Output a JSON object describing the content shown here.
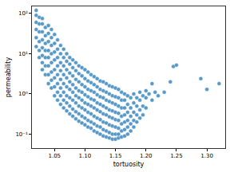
{
  "chart_data": {
    "type": "scatter",
    "x_label": "tortuosity",
    "y_label": "permeability",
    "color": "#1f77b4",
    "marker": "circle",
    "log": "y",
    "grid": false,
    "xlim": [
      1.013,
      1.33
    ],
    "ylim": [
      0.045,
      150
    ],
    "xticks": [
      1.05,
      {
        "value": 1.1,
        "label": "1.10"
      },
      1.15,
      {
        "value": 1.2,
        "label": "1.20"
      },
      1.25,
      {
        "value": 1.3,
        "label": "1.30"
      }
    ],
    "yticks": [
      {
        "value": 0.1,
        "label": "10⁻¹"
      },
      {
        "value": 1,
        "label": "10⁰"
      },
      {
        "value": 10,
        "label": "10¹"
      },
      {
        "value": 100,
        "label": "10²"
      }
    ],
    "x": [
      1.02,
      1.02,
      1.02,
      1.02,
      1.02,
      1.02,
      1.025,
      1.025,
      1.025,
      1.025,
      1.025,
      1.025,
      1.03,
      1.03,
      1.03,
      1.03,
      1.03,
      1.03,
      1.03,
      1.03,
      1.035,
      1.035,
      1.035,
      1.035,
      1.035,
      1.035,
      1.035,
      1.04,
      1.04,
      1.04,
      1.04,
      1.04,
      1.04,
      1.04,
      1.04,
      1.045,
      1.045,
      1.045,
      1.045,
      1.045,
      1.045,
      1.045,
      1.045,
      1.05,
      1.05,
      1.05,
      1.05,
      1.05,
      1.05,
      1.05,
      1.05,
      1.055,
      1.055,
      1.055,
      1.055,
      1.055,
      1.055,
      1.055,
      1.055,
      1.06,
      1.06,
      1.06,
      1.06,
      1.06,
      1.06,
      1.06,
      1.06,
      1.065,
      1.065,
      1.065,
      1.065,
      1.065,
      1.065,
      1.065,
      1.065,
      1.07,
      1.07,
      1.07,
      1.07,
      1.07,
      1.07,
      1.07,
      1.07,
      1.075,
      1.075,
      1.075,
      1.075,
      1.075,
      1.075,
      1.075,
      1.075,
      1.08,
      1.08,
      1.08,
      1.08,
      1.08,
      1.08,
      1.08,
      1.08,
      1.085,
      1.085,
      1.085,
      1.085,
      1.085,
      1.085,
      1.085,
      1.085,
      1.09,
      1.09,
      1.09,
      1.09,
      1.09,
      1.09,
      1.09,
      1.09,
      1.095,
      1.095,
      1.095,
      1.095,
      1.095,
      1.095,
      1.095,
      1.095,
      1.1,
      1.1,
      1.1,
      1.1,
      1.1,
      1.1,
      1.1,
      1.1,
      1.105,
      1.105,
      1.105,
      1.105,
      1.105,
      1.105,
      1.105,
      1.105,
      1.11,
      1.11,
      1.11,
      1.11,
      1.11,
      1.11,
      1.11,
      1.11,
      1.115,
      1.115,
      1.115,
      1.115,
      1.115,
      1.115,
      1.115,
      1.115,
      1.12,
      1.12,
      1.12,
      1.12,
      1.12,
      1.12,
      1.12,
      1.12,
      1.125,
      1.125,
      1.125,
      1.125,
      1.125,
      1.125,
      1.125,
      1.125,
      1.13,
      1.13,
      1.13,
      1.13,
      1.13,
      1.13,
      1.13,
      1.13,
      1.135,
      1.135,
      1.135,
      1.135,
      1.135,
      1.135,
      1.135,
      1.135,
      1.14,
      1.14,
      1.14,
      1.14,
      1.14,
      1.14,
      1.14,
      1.14,
      1.145,
      1.145,
      1.145,
      1.145,
      1.145,
      1.145,
      1.145,
      1.145,
      1.15,
      1.15,
      1.15,
      1.15,
      1.15,
      1.15,
      1.15,
      1.15,
      1.155,
      1.155,
      1.155,
      1.155,
      1.155,
      1.155,
      1.155,
      1.155,
      1.16,
      1.16,
      1.16,
      1.16,
      1.16,
      1.16,
      1.16,
      1.165,
      1.165,
      1.165,
      1.165,
      1.165,
      1.165,
      1.165,
      1.17,
      1.17,
      1.17,
      1.17,
      1.17,
      1.17,
      1.175,
      1.175,
      1.175,
      1.175,
      1.175,
      1.18,
      1.18,
      1.18,
      1.18,
      1.18,
      1.185,
      1.185,
      1.185,
      1.185,
      1.19,
      1.19,
      1.19,
      1.19,
      1.195,
      1.195,
      1.195,
      1.2,
      1.2,
      1.2,
      1.205,
      1.21,
      1.215,
      1.22,
      1.23,
      1.245,
      1.25,
      1.24,
      1.29,
      1.3,
      1.32,
      1.21
    ],
    "values": [
      15,
      25,
      40,
      60,
      90,
      120,
      8,
      12,
      20,
      35,
      55,
      80,
      4,
      6,
      9,
      14,
      22,
      35,
      55,
      75,
      3,
      5,
      8,
      12,
      18,
      28,
      45,
      1.8,
      3,
      5,
      8,
      12,
      20,
      32,
      50,
      1.4,
      2.2,
      3.5,
      6,
      10,
      16,
      25,
      40,
      0.9,
      1.5,
      2.5,
      4,
      7,
      11,
      18,
      30,
      0.7,
      1.1,
      1.8,
      3,
      5,
      8,
      13,
      22,
      0.55,
      0.9,
      1.4,
      2.3,
      3.8,
      6,
      10,
      16,
      0.45,
      0.7,
      1.1,
      1.8,
      3,
      5,
      8,
      13,
      0.38,
      0.6,
      0.9,
      1.5,
      2.5,
      4,
      6.5,
      10,
      0.32,
      0.5,
      0.8,
      1.3,
      2,
      3.3,
      5.5,
      8,
      0.28,
      0.42,
      0.7,
      1.1,
      1.7,
      2.8,
      4.5,
      7,
      0.24,
      0.36,
      0.6,
      0.9,
      1.4,
      2.3,
      3.8,
      6,
      0.21,
      0.32,
      0.5,
      0.8,
      1.2,
      2,
      3.2,
      5,
      0.19,
      0.28,
      0.45,
      0.7,
      1.1,
      1.7,
      2.8,
      4.5,
      0.17,
      0.25,
      0.4,
      0.6,
      0.95,
      1.5,
      2.4,
      4,
      0.15,
      0.22,
      0.35,
      0.55,
      0.85,
      1.3,
      2.1,
      3.5,
      0.14,
      0.2,
      0.32,
      0.5,
      0.75,
      1.2,
      1.9,
      3,
      0.12,
      0.18,
      0.28,
      0.45,
      0.7,
      1.1,
      1.7,
      2.7,
      0.11,
      0.16,
      0.25,
      0.4,
      0.6,
      0.95,
      1.5,
      2.4,
      0.1,
      0.15,
      0.23,
      0.36,
      0.55,
      0.85,
      1.3,
      2.1,
      0.09,
      0.13,
      0.2,
      0.32,
      0.5,
      0.8,
      1.2,
      2,
      0.085,
      0.12,
      0.19,
      0.3,
      0.45,
      0.7,
      1.1,
      1.8,
      0.08,
      0.11,
      0.17,
      0.27,
      0.4,
      0.65,
      1,
      1.6,
      0.075,
      0.1,
      0.16,
      0.25,
      0.38,
      0.6,
      0.9,
      1.5,
      0.075,
      0.1,
      0.15,
      0.23,
      0.35,
      0.55,
      0.85,
      1.4,
      0.08,
      0.1,
      0.14,
      0.22,
      0.33,
      0.5,
      0.8,
      1.3,
      0.085,
      0.12,
      0.18,
      0.28,
      0.45,
      0.7,
      1.1,
      0.09,
      0.13,
      0.2,
      0.3,
      0.45,
      0.7,
      1,
      0.1,
      0.15,
      0.22,
      0.35,
      0.55,
      0.9,
      0.12,
      0.18,
      0.28,
      0.45,
      0.8,
      0.15,
      0.22,
      0.35,
      0.6,
      1,
      0.2,
      0.3,
      0.5,
      0.8,
      0.25,
      0.4,
      0.7,
      1.1,
      0.3,
      0.5,
      0.9,
      0.45,
      0.8,
      1.2,
      1,
      0.7,
      1.1,
      0.9,
      1.1,
      4.8,
      5.2,
      2,
      2.4,
      1.3,
      1.8,
      1.8
    ]
  }
}
